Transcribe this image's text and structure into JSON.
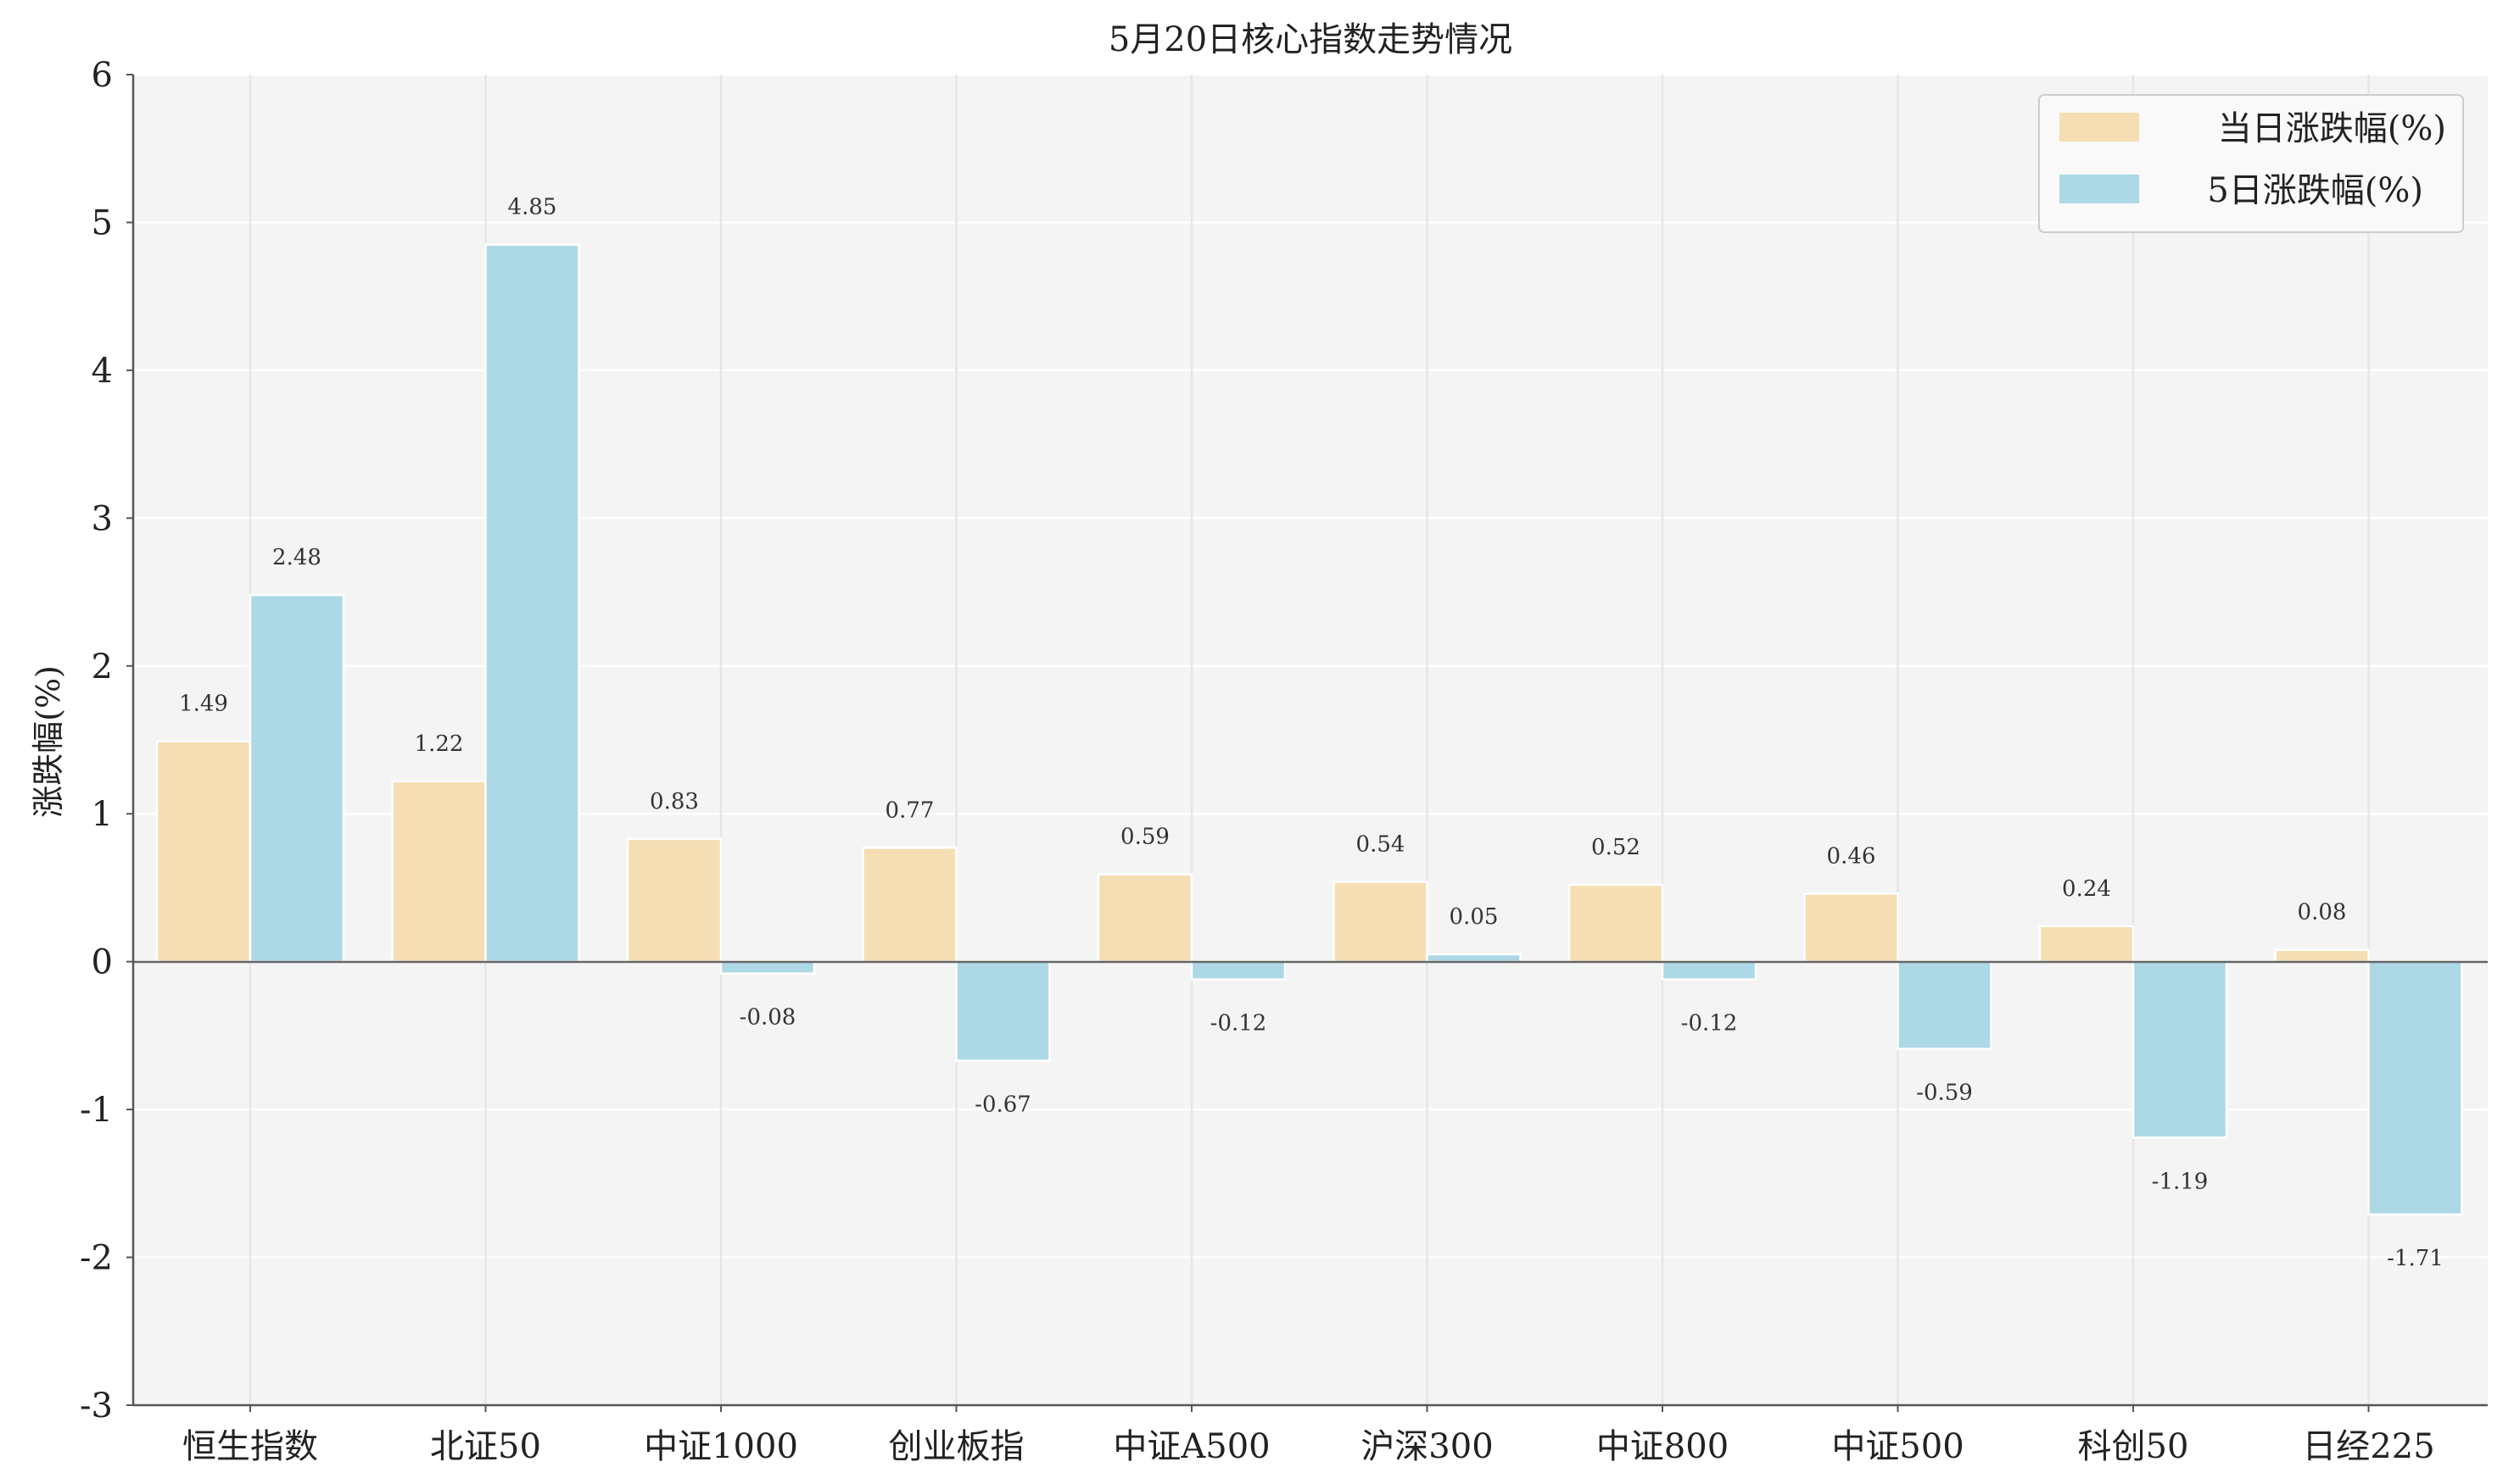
{
  "chart_data": {
    "type": "bar",
    "title": "5月20日核心指数走势情况",
    "xlabel": "",
    "ylabel": "涨跌幅(%)",
    "ylim": [
      -3,
      6
    ],
    "yticks": [
      "6",
      "5",
      "4",
      "3",
      "2",
      "1",
      "0",
      "-1",
      "-2",
      "-3"
    ],
    "categories": [
      "恒生指数",
      "北证50",
      "中证1000",
      "创业板指",
      "中证A500",
      "沪深300",
      "中证800",
      "中证500",
      "科创50",
      "日经225"
    ],
    "series": [
      {
        "name": "当日涨跌幅(%)",
        "color": "#f5deb3",
        "values": [
          1.49,
          1.22,
          0.83,
          0.77,
          0.59,
          0.54,
          0.52,
          0.46,
          0.24,
          0.08
        ],
        "labels": [
          "1.49",
          "1.22",
          "0.83",
          "0.77",
          "0.59",
          "0.54",
          "0.52",
          "0.46",
          "0.24",
          "0.08"
        ]
      },
      {
        "name": "5日涨跌幅(%)",
        "color": "#add8e6",
        "values": [
          2.48,
          4.85,
          -0.08,
          -0.67,
          -0.12,
          0.05,
          -0.12,
          -0.59,
          -1.19,
          -1.71
        ],
        "labels": [
          "2.48",
          "4.85",
          "-0.08",
          "-0.67",
          "-0.12",
          "0.05",
          "-0.12",
          "-0.59",
          "-1.19",
          "-1.71"
        ]
      }
    ],
    "legend_position": "top-right",
    "grid": true,
    "background_color": "#f4f4f4"
  }
}
